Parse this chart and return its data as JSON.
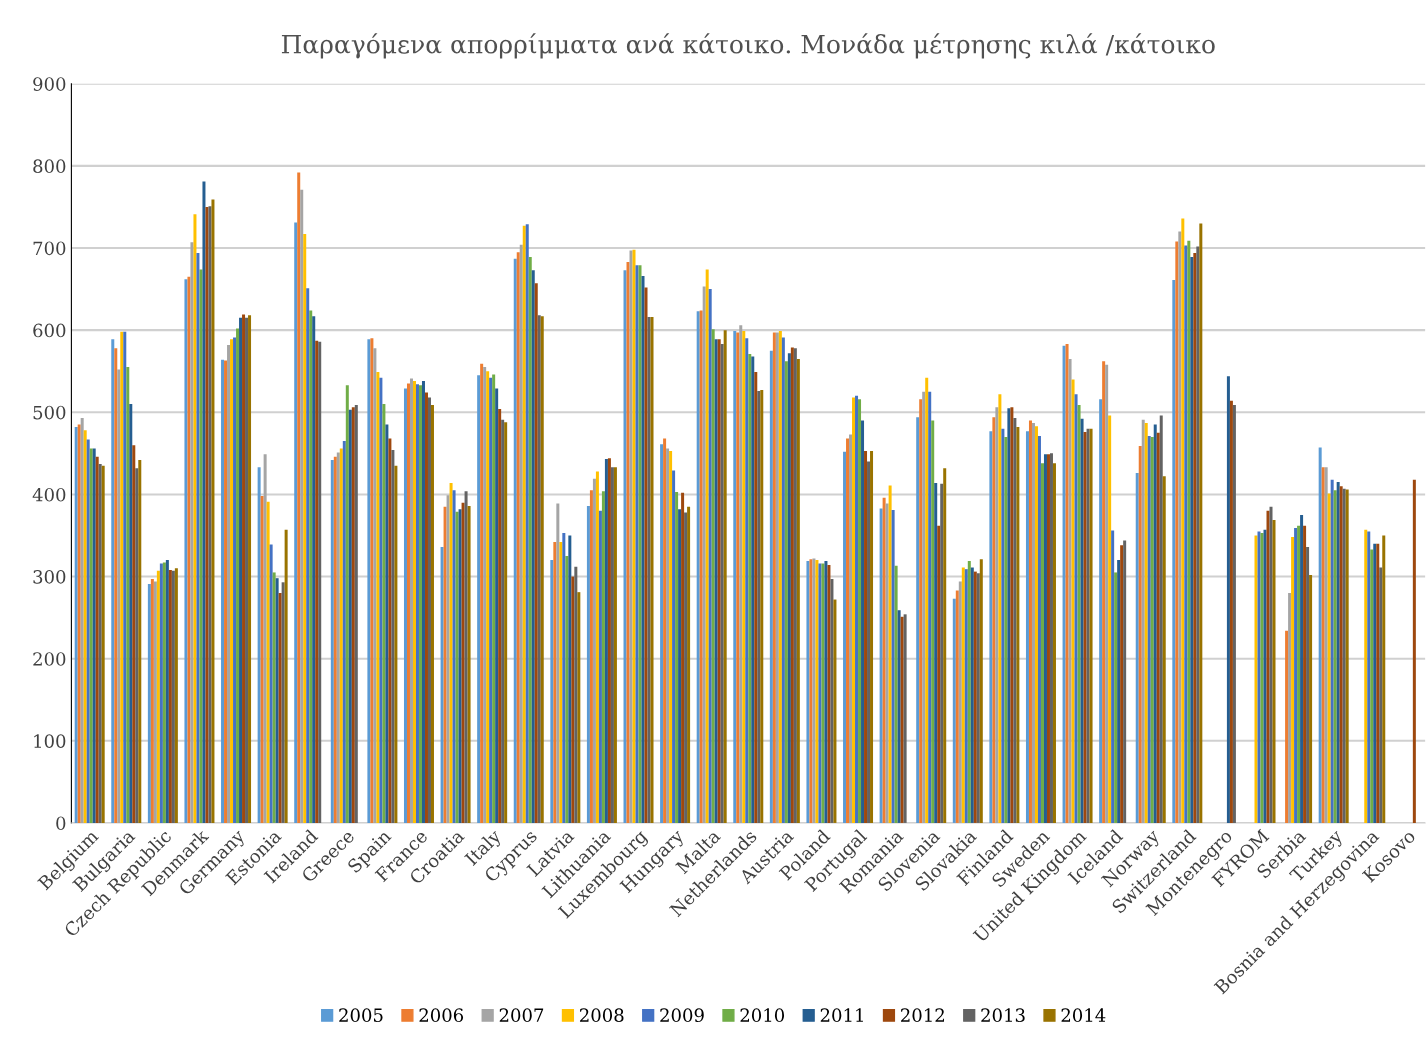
{
  "chart_data": {
    "type": "bar",
    "title": "Παραγόμενα απορρίμματα ανά κάτοικο. Μονάδα μέτρησης κιλά /κάτοικο",
    "categories": [
      "Belgium",
      "Bulgaria",
      "Czech Republic",
      "Denmark",
      "Germany",
      "Estonia",
      "Ireland",
      "Greece",
      "Spain",
      "France",
      "Croatia",
      "Italy",
      "Cyprus",
      "Latvia",
      "Lithuania",
      "Luxembourg",
      "Hungary",
      "Malta",
      "Netherlands",
      "Austria",
      "Poland",
      "Portugal",
      "Romania",
      "Slovenia",
      "Slovakia",
      "Finland",
      "Sweden",
      "United Kingdom",
      "Iceland",
      "Norway",
      "Switzerland",
      "Montenegro",
      "FYROM",
      "Serbia",
      "Turkey",
      "Bosnia and Herzegovina",
      "Kosovo"
    ],
    "ylim": [
      0,
      900
    ],
    "yticks": [
      0,
      100,
      200,
      300,
      400,
      500,
      600,
      700,
      800,
      900
    ],
    "grid": "y",
    "legend": "bottom",
    "series": [
      {
        "name": "2005",
        "color": "#5b9bd5",
        "values": [
          482,
          589,
          291,
          662,
          564,
          433,
          731,
          442,
          589,
          529,
          336,
          545,
          687,
          320,
          386,
          673,
          461,
          623,
          599,
          575,
          319,
          452,
          383,
          494,
          273,
          477,
          477,
          581,
          516,
          426,
          661,
          null,
          null,
          null,
          457,
          null,
          null
        ]
      },
      {
        "name": "2006",
        "color": "#ed7d31",
        "values": [
          485,
          578,
          297,
          665,
          563,
          398,
          792,
          446,
          590,
          535,
          385,
          559,
          695,
          342,
          405,
          683,
          468,
          624,
          597,
          597,
          321,
          468,
          396,
          516,
          283,
          494,
          490,
          583,
          562,
          459,
          708,
          null,
          null,
          234,
          433,
          null,
          null
        ]
      },
      {
        "name": "2007",
        "color": "#a5a5a5",
        "values": [
          493,
          552,
          294,
          707,
          582,
          449,
          771,
          451,
          578,
          541,
          399,
          555,
          704,
          389,
          419,
          697,
          456,
          653,
          606,
          597,
          322,
          473,
          389,
          525,
          294,
          506,
          487,
          565,
          558,
          491,
          720,
          null,
          null,
          280,
          433,
          null,
          null
        ]
      },
      {
        "name": "2008",
        "color": "#ffc000",
        "values": [
          478,
          598,
          307,
          741,
          589,
          391,
          717,
          456,
          549,
          538,
          414,
          550,
          727,
          342,
          428,
          698,
          453,
          674,
          599,
          599,
          320,
          518,
          411,
          542,
          311,
          522,
          483,
          540,
          496,
          487,
          736,
          null,
          350,
          348,
          401,
          357,
          null
        ]
      },
      {
        "name": "2009",
        "color": "#4472c4",
        "values": [
          467,
          598,
          316,
          694,
          591,
          339,
          651,
          465,
          542,
          534,
          405,
          542,
          729,
          353,
          380,
          679,
          429,
          650,
          590,
          591,
          316,
          520,
          381,
          525,
          309,
          480,
          471,
          522,
          356,
          471,
          703,
          null,
          355,
          359,
          418,
          355,
          null
        ]
      },
      {
        "name": "2010",
        "color": "#70ad47",
        "values": [
          456,
          555,
          317,
          674,
          602,
          305,
          624,
          533,
          510,
          533,
          379,
          546,
          689,
          325,
          404,
          679,
          403,
          601,
          571,
          562,
          316,
          516,
          313,
          490,
          319,
          470,
          438,
          509,
          305,
          470,
          709,
          null,
          353,
          362,
          405,
          333,
          null
        ]
      },
      {
        "name": "2011",
        "color": "#255e91",
        "values": [
          456,
          510,
          320,
          781,
          615,
          298,
          617,
          503,
          485,
          538,
          382,
          529,
          673,
          350,
          443,
          666,
          382,
          589,
          568,
          572,
          319,
          490,
          259,
          414,
          311,
          505,
          449,
          492,
          320,
          485,
          689,
          544,
          357,
          375,
          415,
          340,
          null
        ]
      },
      {
        "name": "2012",
        "color": "#9e480e",
        "values": [
          446,
          460,
          308,
          750,
          619,
          280,
          587,
          506,
          468,
          524,
          390,
          504,
          657,
          300,
          444,
          652,
          402,
          589,
          549,
          579,
          314,
          453,
          251,
          362,
          306,
          506,
          449,
          476,
          338,
          475,
          694,
          514,
          380,
          362,
          410,
          340,
          418
        ]
      },
      {
        "name": "2013",
        "color": "#636363",
        "values": [
          437,
          432,
          307,
          751,
          615,
          293,
          586,
          509,
          454,
          518,
          404,
          491,
          618,
          312,
          433,
          616,
          378,
          583,
          526,
          578,
          297,
          440,
          254,
          413,
          304,
          493,
          450,
          480,
          344,
          496,
          702,
          509,
          385,
          336,
          407,
          311,
          null
        ]
      },
      {
        "name": "2014",
        "color": "#997300",
        "values": [
          435,
          442,
          310,
          759,
          618,
          357,
          null,
          null,
          435,
          509,
          386,
          488,
          617,
          281,
          433,
          616,
          385,
          600,
          527,
          565,
          272,
          453,
          null,
          432,
          321,
          482,
          438,
          480,
          null,
          422,
          730,
          null,
          369,
          302,
          406,
          350,
          null
        ]
      }
    ]
  }
}
